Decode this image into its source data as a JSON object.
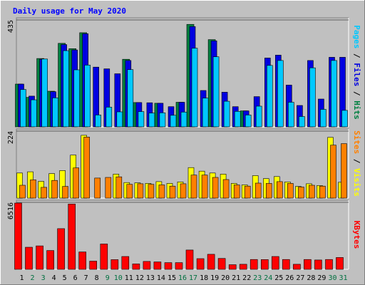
{
  "title": "Daily usage for May 2020",
  "colors": {
    "background": "#c0c0c0",
    "pages": "#00c8ff",
    "files": "#0000e0",
    "hits": "#008040",
    "visits": "#ffff00",
    "sites": "#ff8000",
    "kbytes": "#ff0000",
    "weekday": "#000000",
    "weekend": "#007040"
  },
  "chart_data": [
    {
      "type": "bar",
      "panel": "hits-files-pages",
      "ymax_label": "435",
      "ylim": [
        0,
        435
      ],
      "ylabel_parts": [
        "Pages",
        "Files",
        "Hits"
      ],
      "categories": [
        "1",
        "2",
        "3",
        "4",
        "5",
        "6",
        "7",
        "8",
        "9",
        "10",
        "11",
        "12",
        "13",
        "14",
        "15",
        "16",
        "17",
        "18",
        "19",
        "20",
        "21",
        "22",
        "23",
        "24",
        "25",
        "26",
        "27",
        "28",
        "29",
        "30",
        "31"
      ],
      "series": [
        {
          "name": "Hits",
          "values": [
            174,
            120,
            278,
            145,
            340,
            318,
            383,
            0,
            0,
            0,
            275,
            99,
            0,
            96,
            0,
            100,
            417,
            0,
            355,
            0,
            0,
            65,
            0,
            0,
            0,
            0,
            0,
            0,
            0,
            0,
            0
          ]
        },
        {
          "name": "Files",
          "values": [
            174,
            125,
            275,
            143,
            335,
            313,
            379,
            243,
            236,
            216,
            270,
            99,
            98,
            96,
            82,
            100,
            408,
            148,
            350,
            141,
            82,
            65,
            123,
            280,
            292,
            170,
            87,
            270,
            113,
            283,
            283
          ]
        },
        {
          "name": "Pages",
          "values": [
            152,
            110,
            276,
            118,
            310,
            232,
            251,
            48,
            80,
            61,
            233,
            62,
            56,
            57,
            47,
            60,
            320,
            117,
            285,
            104,
            63,
            48,
            84,
            250,
            270,
            100,
            42,
            240,
            71,
            270,
            67
          ]
        }
      ]
    },
    {
      "type": "bar",
      "panel": "visits-sites",
      "ymax_label": "224",
      "ylim": [
        0,
        224
      ],
      "ylabel_parts": [
        "Sites",
        "Visits"
      ],
      "categories": [
        "1",
        "2",
        "3",
        "4",
        "5",
        "6",
        "7",
        "8",
        "9",
        "10",
        "11",
        "12",
        "13",
        "14",
        "15",
        "16",
        "17",
        "18",
        "19",
        "20",
        "21",
        "22",
        "23",
        "24",
        "25",
        "26",
        "27",
        "28",
        "29",
        "30",
        "31"
      ],
      "series": [
        {
          "name": "Visits",
          "values": [
            84,
            88,
            56,
            82,
            92,
            144,
            210,
            0,
            0,
            80,
            52,
            51,
            49,
            55,
            49,
            54,
            102,
            90,
            84,
            80,
            49,
            44,
            75,
            65,
            72,
            54,
            39,
            48,
            42,
            203,
            53
          ]
        },
        {
          "name": "Sites",
          "values": [
            43,
            61,
            36,
            59,
            39,
            101,
            204,
            67,
            69,
            71,
            46,
            48,
            46,
            44,
            40,
            48,
            77,
            77,
            69,
            62,
            44,
            40,
            50,
            49,
            55,
            49,
            37,
            43,
            40,
            177,
            182
          ]
        }
      ]
    },
    {
      "type": "bar",
      "panel": "kbytes",
      "ymax_label": "6516",
      "ylim": [
        0,
        6516
      ],
      "ylabel_parts": [
        "KBytes"
      ],
      "categories": [
        "1",
        "2",
        "3",
        "4",
        "5",
        "6",
        "7",
        "8",
        "9",
        "10",
        "11",
        "12",
        "13",
        "14",
        "15",
        "16",
        "17",
        "18",
        "19",
        "20",
        "21",
        "22",
        "23",
        "24",
        "25",
        "26",
        "27",
        "28",
        "29",
        "30",
        "31"
      ],
      "series": [
        {
          "name": "KBytes",
          "values": [
            6450,
            2150,
            2280,
            1830,
            3960,
            6360,
            1690,
            799,
            2470,
            940,
            1250,
            530,
            770,
            720,
            650,
            650,
            1880,
            1040,
            1460,
            1060,
            450,
            490,
            960,
            950,
            1250,
            960,
            490,
            960,
            910,
            960,
            1150
          ]
        }
      ]
    }
  ],
  "weekend_days": [
    2,
    3,
    9,
    10,
    16,
    17,
    23,
    24,
    30,
    31
  ]
}
